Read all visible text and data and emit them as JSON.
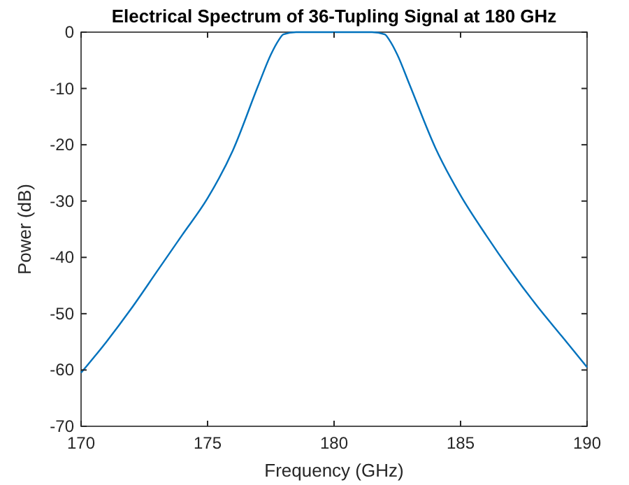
{
  "chart_data": {
    "type": "line",
    "title": "Electrical Spectrum of 36-Tupling Signal at 180 GHz",
    "xlabel": "Frequency (GHz)",
    "ylabel": "Power (dB)",
    "xlim": [
      170,
      190
    ],
    "ylim": [
      -70,
      0
    ],
    "xticks": [
      170,
      175,
      180,
      185,
      190
    ],
    "yticks": [
      -70,
      -60,
      -50,
      -40,
      -30,
      -20,
      -10,
      0
    ],
    "grid": false,
    "series": [
      {
        "color": "#0072bd",
        "x": [
          170,
          171,
          172,
          173,
          174,
          175,
          176,
          177,
          177.5,
          177.8,
          178,
          178.5,
          179,
          180,
          181,
          181.5,
          182,
          182.2,
          182.5,
          183,
          184,
          185,
          186,
          187,
          188,
          189,
          190
        ],
        "values": [
          -60.5,
          -55,
          -49,
          -42.5,
          -36,
          -29.5,
          -21,
          -9.5,
          -4,
          -1.5,
          -0.4,
          0,
          0,
          0,
          0,
          0,
          -0.4,
          -1.5,
          -4,
          -9.5,
          -20.5,
          -29,
          -36,
          -42.5,
          -48.5,
          -54,
          -59.5
        ]
      }
    ]
  }
}
